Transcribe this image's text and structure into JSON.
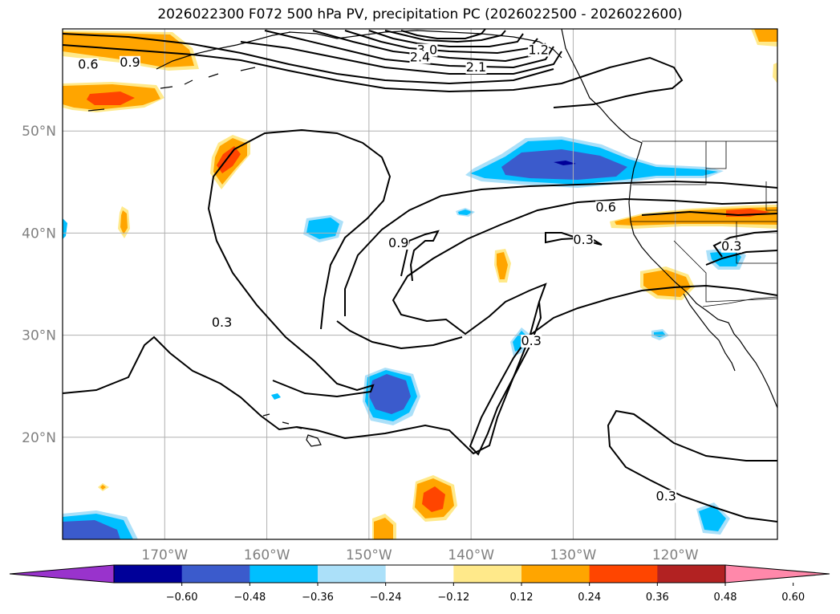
{
  "title": "2026022300 F072 500 hPa PV, precipitation PC (2026022500 - 2026022600)",
  "map": {
    "projection": "PlateCarree",
    "lon_range": [
      -180,
      -110
    ],
    "lat_range": [
      10,
      60
    ],
    "gridlines": true,
    "lon_ticks": [
      {
        "lon": -170,
        "label": "170°W"
      },
      {
        "lon": -160,
        "label": "160°W"
      },
      {
        "lon": -150,
        "label": "150°W"
      },
      {
        "lon": -140,
        "label": "140°W"
      },
      {
        "lon": -130,
        "label": "130°W"
      },
      {
        "lon": -120,
        "label": "120°W"
      }
    ],
    "lat_ticks": [
      {
        "lat": 50,
        "label": "50°N"
      },
      {
        "lat": 40,
        "label": "40°N"
      },
      {
        "lat": 30,
        "label": "30°N"
      },
      {
        "lat": 20,
        "label": "20°N"
      }
    ],
    "contour_labels": [
      {
        "text": "3.0",
        "lon": -144.3,
        "lat": 57.6
      },
      {
        "text": "2.4",
        "lon": -145.0,
        "lat": 56.9
      },
      {
        "text": "2.1",
        "lon": -139.5,
        "lat": 55.9
      },
      {
        "text": "1.2",
        "lon": -133.4,
        "lat": 57.6
      },
      {
        "text": "0.9",
        "lon": -173.4,
        "lat": 56.4
      },
      {
        "text": "0.6",
        "lon": -177.5,
        "lat": 56.2
      },
      {
        "text": "0.9",
        "lon": -147.1,
        "lat": 38.7
      },
      {
        "text": "0.6",
        "lon": -126.8,
        "lat": 42.2
      },
      {
        "text": "0.3",
        "lon": -129.0,
        "lat": 39.0
      },
      {
        "text": "0.3",
        "lon": -114.5,
        "lat": 38.4
      },
      {
        "text": "0.3",
        "lon": -164.4,
        "lat": 30.9
      },
      {
        "text": "0.3",
        "lon": -134.1,
        "lat": 29.1
      },
      {
        "text": "0.3",
        "lon": -120.9,
        "lat": 13.9
      }
    ]
  },
  "colorbar": {
    "ticks": [
      "−0.60",
      "−0.48",
      "−0.36",
      "−0.24",
      "−0.12",
      "0.12",
      "0.24",
      "0.36",
      "0.48",
      "0.60"
    ],
    "colors": [
      "#9933cc",
      "#000099",
      "#3b5bcc",
      "#00bfff",
      "#abe0f9",
      "#ffffff",
      "#ffe98a",
      "#ffa500",
      "#ff4500",
      "#b22222",
      "#ff88aa"
    ]
  }
}
